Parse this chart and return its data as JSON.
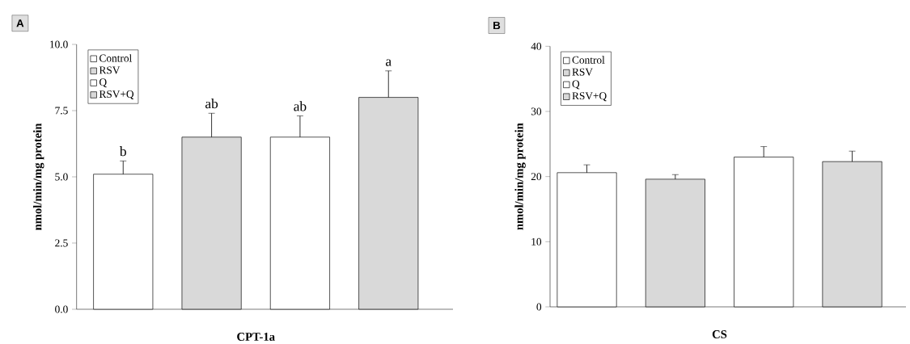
{
  "chart_data": [
    {
      "type": "bar",
      "xlabel": null,
      "ylabel": "nmol/min/mg protein",
      "categories": [
        "CPT-1a"
      ],
      "series": [
        {
          "name": "Control",
          "color": "#ffffff",
          "values": [
            5.1
          ],
          "errors": [
            [
              5.1,
              5.6
            ]
          ]
        },
        {
          "name": "RSV",
          "color": "#d9d9d9",
          "values": [
            6.5
          ],
          "errors": [
            [
              6.5,
              7.4
            ]
          ]
        },
        {
          "name": "Q",
          "color": "#ffffff",
          "values": [
            6.5
          ],
          "errors": [
            [
              6.5,
              7.3
            ]
          ]
        },
        {
          "name": "RSV+Q",
          "color": "#d9d9d9",
          "values": [
            8.0
          ],
          "errors": [
            [
              8.0,
              9.0
            ]
          ]
        }
      ],
      "ylim": [
        0,
        10
      ],
      "yticks": [
        {
          "value": 0,
          "label": "0.0"
        },
        {
          "value": 2.5,
          "label": "2.5"
        },
        {
          "value": 5,
          "label": "5.0"
        },
        {
          "value": 7.5,
          "label": "7.5"
        },
        {
          "value": 10,
          "label": "10.0"
        }
      ],
      "legend": "top left",
      "grid": false,
      "annotations": [
        "A",
        "b",
        "ab",
        "ab",
        "a"
      ]
    },
    {
      "type": "bar",
      "ylabel": "nmol/min/mg protein",
      "categories": [
        "CS"
      ],
      "series": [
        {
          "name": "Control",
          "color": "#ffffff",
          "values": [
            20.6
          ],
          "errors": [
            [
              20.6,
              21.8
            ]
          ]
        },
        {
          "name": "RSV",
          "color": "#d9d9d9",
          "values": [
            19.6
          ],
          "errors": [
            [
              19.6,
              20.3
            ]
          ]
        },
        {
          "name": "Q",
          "color": "#ffffff",
          "values": [
            23.0
          ],
          "errors": [
            [
              23.0,
              24.6
            ]
          ]
        },
        {
          "name": "RSV+Q",
          "color": "#d9d9d9",
          "values": [
            22.3
          ],
          "errors": [
            [
              22.3,
              23.9
            ]
          ]
        }
      ],
      "ylim": [
        0,
        40
      ],
      "yticks": [
        0,
        10,
        20,
        30,
        40
      ],
      "legend": "top left",
      "grid": false,
      "annotations": [
        "B"
      ]
    }
  ]
}
